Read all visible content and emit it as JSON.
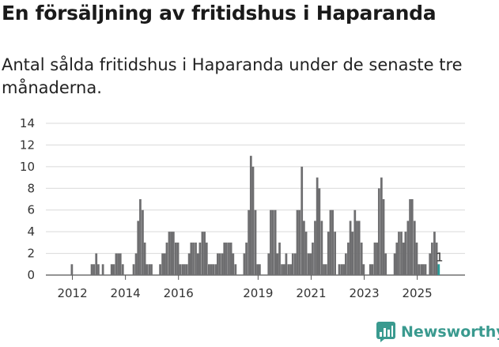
{
  "title": "En försäljning av fritidshus i Haparanda",
  "subtitle": "Antal sålda fritidshus i Haparanda under de senaste tre månaderna.",
  "brand": {
    "name": "Newsworthy",
    "logo_icon": "newsworthy-logo-icon"
  },
  "colors": {
    "bar": "#6e6e70",
    "highlight": "#2a9d99",
    "grid": "#d9d9d9",
    "brand": "#3a9a8f"
  },
  "chart_data": {
    "type": "bar",
    "title": "En försäljning av fritidshus i Haparanda",
    "xlabel": "",
    "ylabel": "",
    "ylim": [
      0,
      14
    ],
    "yticks": [
      0,
      2,
      4,
      6,
      8,
      10,
      12,
      14
    ],
    "xticks": [
      {
        "label": "2012",
        "x": 2012
      },
      {
        "label": "2014",
        "x": 2014
      },
      {
        "label": "2016",
        "x": 2016
      },
      {
        "label": "2019",
        "x": 2019
      },
      {
        "label": "2021",
        "x": 2021
      },
      {
        "label": "2023",
        "x": 2023
      },
      {
        "label": "2025",
        "x": 2025
      }
    ],
    "frequency": "monthly (rolling three-month total)",
    "series": [
      {
        "name": "Antal sålda fritidshus",
        "points": [
          {
            "x": 2011.98,
            "y": 1
          },
          {
            "x": 2012.73,
            "y": 1
          },
          {
            "x": 2012.81,
            "y": 1
          },
          {
            "x": 2012.9,
            "y": 2
          },
          {
            "x": 2012.98,
            "y": 1
          },
          {
            "x": 2013.15,
            "y": 1
          },
          {
            "x": 2013.48,
            "y": 1
          },
          {
            "x": 2013.56,
            "y": 1
          },
          {
            "x": 2013.65,
            "y": 2
          },
          {
            "x": 2013.73,
            "y": 2
          },
          {
            "x": 2013.81,
            "y": 2
          },
          {
            "x": 2013.9,
            "y": 1
          },
          {
            "x": 2014.31,
            "y": 1
          },
          {
            "x": 2014.4,
            "y": 2
          },
          {
            "x": 2014.48,
            "y": 5
          },
          {
            "x": 2014.56,
            "y": 7
          },
          {
            "x": 2014.65,
            "y": 6
          },
          {
            "x": 2014.73,
            "y": 3
          },
          {
            "x": 2014.81,
            "y": 1
          },
          {
            "x": 2014.9,
            "y": 1
          },
          {
            "x": 2014.98,
            "y": 1
          },
          {
            "x": 2015.31,
            "y": 1
          },
          {
            "x": 2015.4,
            "y": 2
          },
          {
            "x": 2015.48,
            "y": 2
          },
          {
            "x": 2015.56,
            "y": 3
          },
          {
            "x": 2015.65,
            "y": 4
          },
          {
            "x": 2015.73,
            "y": 4
          },
          {
            "x": 2015.81,
            "y": 4
          },
          {
            "x": 2015.9,
            "y": 3
          },
          {
            "x": 2015.98,
            "y": 3
          },
          {
            "x": 2016.06,
            "y": 1
          },
          {
            "x": 2016.15,
            "y": 1
          },
          {
            "x": 2016.23,
            "y": 1
          },
          {
            "x": 2016.31,
            "y": 1
          },
          {
            "x": 2016.4,
            "y": 2
          },
          {
            "x": 2016.48,
            "y": 3
          },
          {
            "x": 2016.56,
            "y": 3
          },
          {
            "x": 2016.65,
            "y": 3
          },
          {
            "x": 2016.73,
            "y": 2
          },
          {
            "x": 2016.81,
            "y": 3
          },
          {
            "x": 2016.9,
            "y": 4
          },
          {
            "x": 2016.98,
            "y": 4
          },
          {
            "x": 2017.06,
            "y": 3
          },
          {
            "x": 2017.15,
            "y": 1
          },
          {
            "x": 2017.23,
            "y": 1
          },
          {
            "x": 2017.31,
            "y": 1
          },
          {
            "x": 2017.4,
            "y": 1
          },
          {
            "x": 2017.48,
            "y": 2
          },
          {
            "x": 2017.56,
            "y": 2
          },
          {
            "x": 2017.65,
            "y": 2
          },
          {
            "x": 2017.73,
            "y": 3
          },
          {
            "x": 2017.81,
            "y": 3
          },
          {
            "x": 2017.9,
            "y": 3
          },
          {
            "x": 2017.98,
            "y": 3
          },
          {
            "x": 2018.06,
            "y": 2
          },
          {
            "x": 2018.15,
            "y": 1
          },
          {
            "x": 2018.48,
            "y": 2
          },
          {
            "x": 2018.56,
            "y": 3
          },
          {
            "x": 2018.65,
            "y": 6
          },
          {
            "x": 2018.73,
            "y": 11
          },
          {
            "x": 2018.81,
            "y": 10
          },
          {
            "x": 2018.9,
            "y": 6
          },
          {
            "x": 2018.98,
            "y": 1
          },
          {
            "x": 2019.06,
            "y": 1
          },
          {
            "x": 2019.4,
            "y": 2
          },
          {
            "x": 2019.48,
            "y": 6
          },
          {
            "x": 2019.56,
            "y": 6
          },
          {
            "x": 2019.65,
            "y": 6
          },
          {
            "x": 2019.73,
            "y": 2
          },
          {
            "x": 2019.81,
            "y": 3
          },
          {
            "x": 2019.9,
            "y": 1
          },
          {
            "x": 2019.98,
            "y": 1
          },
          {
            "x": 2020.06,
            "y": 2
          },
          {
            "x": 2020.15,
            "y": 1
          },
          {
            "x": 2020.23,
            "y": 1
          },
          {
            "x": 2020.31,
            "y": 2
          },
          {
            "x": 2020.4,
            "y": 2
          },
          {
            "x": 2020.48,
            "y": 6
          },
          {
            "x": 2020.56,
            "y": 6
          },
          {
            "x": 2020.65,
            "y": 10
          },
          {
            "x": 2020.73,
            "y": 5
          },
          {
            "x": 2020.81,
            "y": 4
          },
          {
            "x": 2020.9,
            "y": 2
          },
          {
            "x": 2020.98,
            "y": 2
          },
          {
            "x": 2021.06,
            "y": 3
          },
          {
            "x": 2021.15,
            "y": 5
          },
          {
            "x": 2021.23,
            "y": 9
          },
          {
            "x": 2021.31,
            "y": 8
          },
          {
            "x": 2021.4,
            "y": 5
          },
          {
            "x": 2021.48,
            "y": 1
          },
          {
            "x": 2021.56,
            "y": 1
          },
          {
            "x": 2021.65,
            "y": 4
          },
          {
            "x": 2021.73,
            "y": 6
          },
          {
            "x": 2021.81,
            "y": 6
          },
          {
            "x": 2021.9,
            "y": 4
          },
          {
            "x": 2022.06,
            "y": 1
          },
          {
            "x": 2022.15,
            "y": 1
          },
          {
            "x": 2022.23,
            "y": 1
          },
          {
            "x": 2022.31,
            "y": 2
          },
          {
            "x": 2022.4,
            "y": 3
          },
          {
            "x": 2022.48,
            "y": 5
          },
          {
            "x": 2022.56,
            "y": 4
          },
          {
            "x": 2022.65,
            "y": 6
          },
          {
            "x": 2022.73,
            "y": 5
          },
          {
            "x": 2022.81,
            "y": 5
          },
          {
            "x": 2022.9,
            "y": 3
          },
          {
            "x": 2022.98,
            "y": 1
          },
          {
            "x": 2023.23,
            "y": 1
          },
          {
            "x": 2023.31,
            "y": 1
          },
          {
            "x": 2023.4,
            "y": 3
          },
          {
            "x": 2023.48,
            "y": 3
          },
          {
            "x": 2023.56,
            "y": 8
          },
          {
            "x": 2023.65,
            "y": 9
          },
          {
            "x": 2023.73,
            "y": 7
          },
          {
            "x": 2023.81,
            "y": 2
          },
          {
            "x": 2024.15,
            "y": 2
          },
          {
            "x": 2024.23,
            "y": 3
          },
          {
            "x": 2024.31,
            "y": 4
          },
          {
            "x": 2024.4,
            "y": 4
          },
          {
            "x": 2024.48,
            "y": 3
          },
          {
            "x": 2024.56,
            "y": 4
          },
          {
            "x": 2024.65,
            "y": 5
          },
          {
            "x": 2024.73,
            "y": 7
          },
          {
            "x": 2024.81,
            "y": 7
          },
          {
            "x": 2024.9,
            "y": 5
          },
          {
            "x": 2024.98,
            "y": 3
          },
          {
            "x": 2025.06,
            "y": 1
          },
          {
            "x": 2025.15,
            "y": 1
          },
          {
            "x": 2025.23,
            "y": 1
          },
          {
            "x": 2025.31,
            "y": 1
          },
          {
            "x": 2025.48,
            "y": 2
          },
          {
            "x": 2025.56,
            "y": 3
          },
          {
            "x": 2025.65,
            "y": 4
          },
          {
            "x": 2025.73,
            "y": 3
          },
          {
            "x": 2025.81,
            "y": 1,
            "highlight": true,
            "label": "1"
          }
        ]
      }
    ],
    "xlim": [
      2011.0,
      2026.8
    ]
  }
}
